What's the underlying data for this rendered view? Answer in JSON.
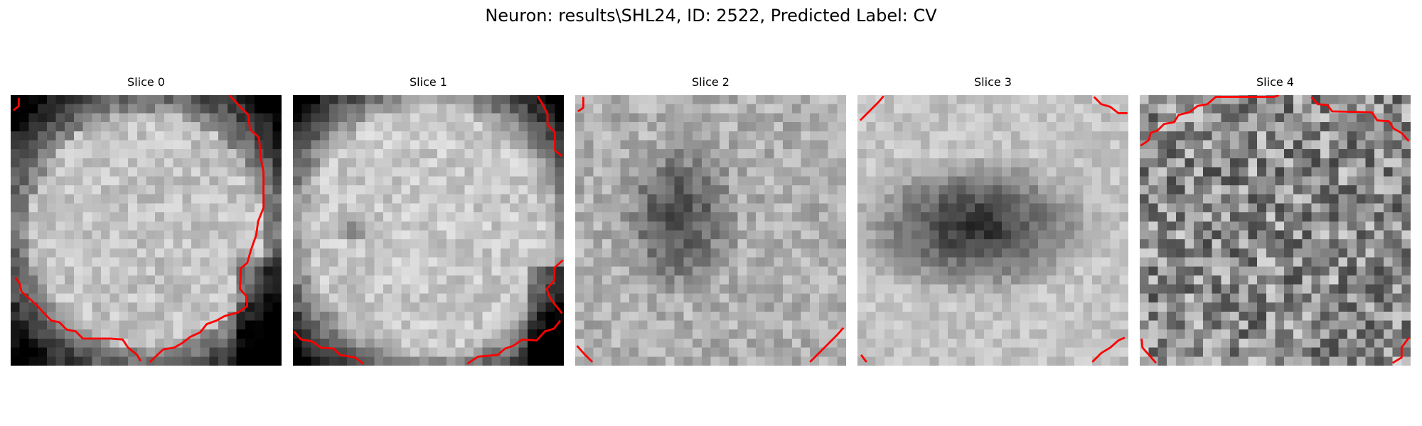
{
  "figure": {
    "title": "Neuron: results\\SHL24, ID: 2522, Predicted Label: CV"
  },
  "panels": [
    {
      "id": "slice-0",
      "title": "Slice 0",
      "pattern": "bright-disc",
      "contour_color": "#ff0000"
    },
    {
      "id": "slice-1",
      "title": "Slice 1",
      "pattern": "bright-disc-dim-center",
      "contour_color": "#ff0000"
    },
    {
      "id": "slice-2",
      "title": "Slice 2",
      "pattern": "dark-core",
      "contour_color": "#ff0000"
    },
    {
      "id": "slice-3",
      "title": "Slice 3",
      "pattern": "dark-ellipse",
      "contour_color": "#ff0000"
    },
    {
      "id": "slice-4",
      "title": "Slice 4",
      "pattern": "noisy",
      "contour_color": "#ff0000"
    }
  ]
}
